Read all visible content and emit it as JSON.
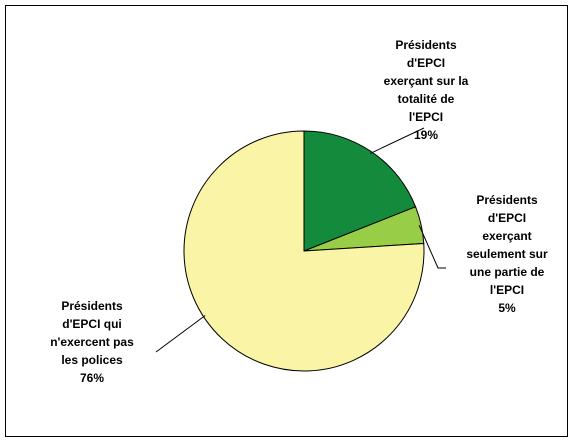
{
  "chart_data": {
    "type": "pie",
    "slices": [
      {
        "label_lines": [
          "Présidents",
          "d'EPCI",
          "exerçant sur la",
          "totalité de",
          "l'EPCI"
        ],
        "percent_label": "19%",
        "value": 19,
        "color": "#138a3c"
      },
      {
        "label_lines": [
          "Présidents",
          "d'EPCI",
          "exerçant",
          "seulement sur",
          "une partie de",
          "l'EPCI"
        ],
        "percent_label": "5%",
        "value": 5,
        "color": "#98cd47"
      },
      {
        "label_lines": [
          "Présidents",
          "d'EPCI qui",
          "n'exercent pas",
          "les polices"
        ],
        "percent_label": "76%",
        "value": 76,
        "color": "#f9f4a6"
      }
    ],
    "start_angle_deg": 0,
    "direction": "clockwise",
    "legend": "none",
    "stroke_color": "#000000"
  }
}
